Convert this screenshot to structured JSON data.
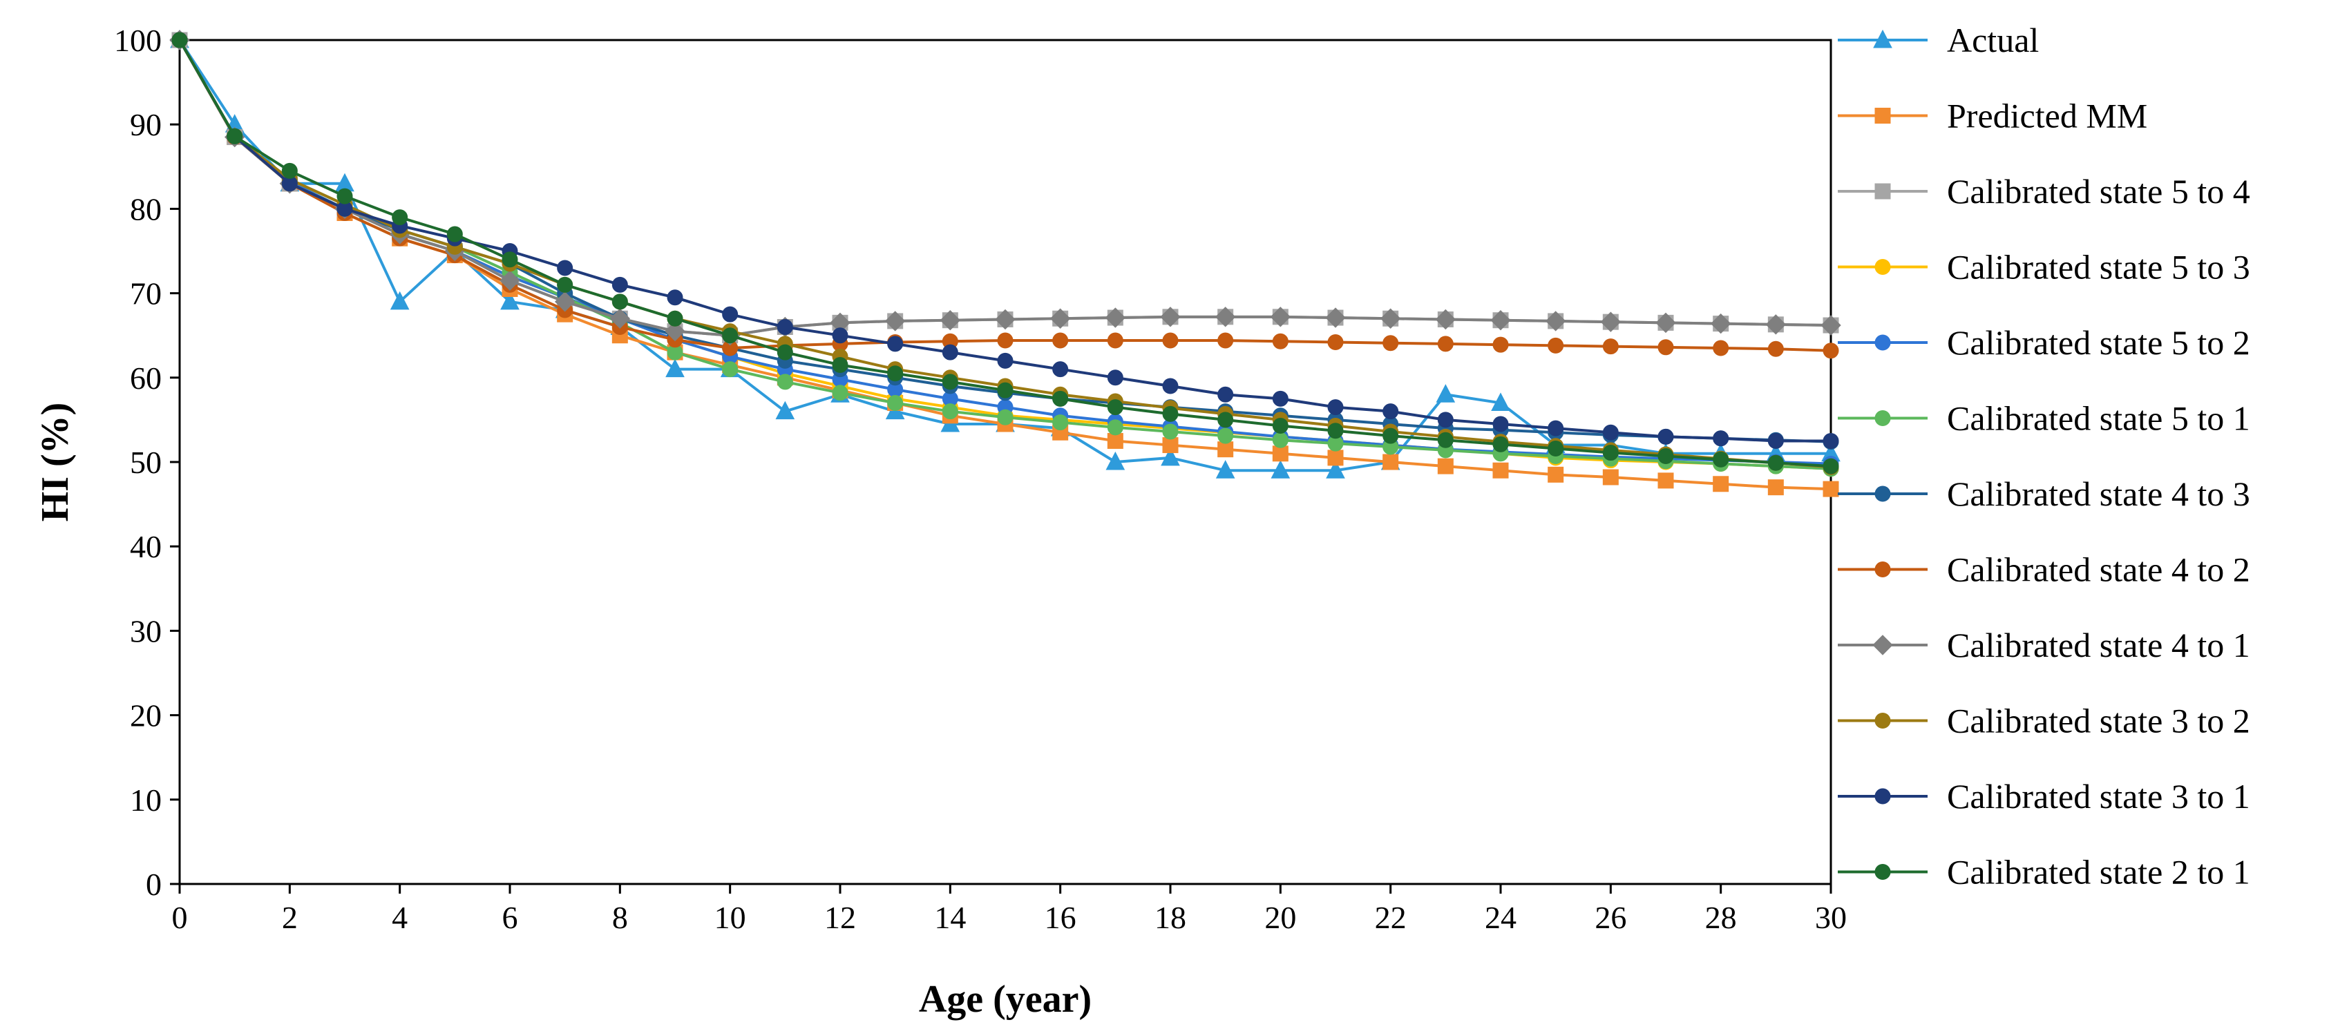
{
  "chart_data": {
    "type": "line",
    "title": "",
    "xlabel": "Age (year)",
    "ylabel": "HI (%)",
    "xlim": [
      0,
      30
    ],
    "ylim": [
      0,
      100
    ],
    "xticks": [
      0,
      2,
      4,
      6,
      8,
      10,
      12,
      14,
      16,
      18,
      20,
      22,
      24,
      26,
      28,
      30
    ],
    "yticks": [
      0,
      10,
      20,
      30,
      40,
      50,
      60,
      70,
      80,
      90,
      100
    ],
    "grid": false,
    "legend_position": "right",
    "x": [
      0,
      1,
      2,
      3,
      4,
      5,
      6,
      7,
      8,
      9,
      10,
      11,
      12,
      13,
      14,
      15,
      16,
      17,
      18,
      19,
      20,
      21,
      22,
      23,
      24,
      25,
      26,
      27,
      28,
      29,
      30
    ],
    "series": [
      {
        "name": "Actual",
        "color": "#2E9BDB",
        "marker": "triangle",
        "values": [
          100,
          90,
          83,
          83,
          69,
          75,
          69,
          68,
          66,
          61,
          61,
          56,
          58,
          56,
          54.5,
          54.5,
          54,
          50,
          50.5,
          49,
          49,
          49,
          50,
          58,
          57,
          52,
          52,
          51,
          51,
          51,
          51
        ]
      },
      {
        "name": "Predicted MM",
        "color": "#F28A2E",
        "marker": "square",
        "values": [
          100,
          88.5,
          83,
          79.5,
          76.5,
          74.5,
          70.5,
          67.5,
          65,
          63,
          61.5,
          60,
          58.5,
          57,
          55.5,
          54.5,
          53.5,
          52.5,
          52,
          51.5,
          51,
          50.5,
          50,
          49.5,
          49,
          48.5,
          48.2,
          47.8,
          47.4,
          47,
          46.8
        ]
      },
      {
        "name": "Calibrated state 5 to 4",
        "color": "#A5A5A5",
        "marker": "square",
        "values": [
          100,
          88.5,
          83,
          80,
          77,
          75,
          71.5,
          69,
          67,
          65.5,
          65,
          66,
          66.5,
          66.7,
          66.8,
          66.9,
          67,
          67.1,
          67.2,
          67.2,
          67.2,
          67.1,
          67,
          66.9,
          66.8,
          66.7,
          66.6,
          66.5,
          66.4,
          66.3,
          66.2
        ]
      },
      {
        "name": "Calibrated state 5 to 3",
        "color": "#FFC000",
        "marker": "circle",
        "values": [
          100,
          88.6,
          83.2,
          80,
          77,
          75,
          72,
          69.5,
          67,
          64.5,
          62.5,
          60.5,
          59,
          57.5,
          56.5,
          55.5,
          55,
          54.5,
          54,
          53.5,
          53,
          52.5,
          52,
          51.5,
          51,
          50.5,
          50.2,
          50,
          49.8,
          49.5,
          49.2
        ]
      },
      {
        "name": "Calibrated state 5 to 2",
        "color": "#2E75D6",
        "marker": "circle",
        "values": [
          100,
          88.6,
          83.2,
          80,
          77,
          75,
          72,
          69.5,
          67,
          64.5,
          62.5,
          61,
          59.8,
          58.6,
          57.5,
          56.5,
          55.5,
          54.8,
          54.2,
          53.6,
          53,
          52.5,
          52,
          51.5,
          51.2,
          50.9,
          50.6,
          50.4,
          50.2,
          50,
          49.8
        ]
      },
      {
        "name": "Calibrated state 5 to 1",
        "color": "#5CB85C",
        "marker": "circle",
        "values": [
          100,
          88.6,
          83.5,
          80.5,
          77.5,
          75.5,
          72.5,
          69.5,
          66.5,
          63,
          61,
          59.5,
          58.2,
          57,
          56,
          55.3,
          54.7,
          54.1,
          53.6,
          53.1,
          52.6,
          52.2,
          51.8,
          51.4,
          51,
          50.7,
          50.4,
          50.1,
          49.8,
          49.5,
          49.2
        ]
      },
      {
        "name": "Calibrated state 4 to 3",
        "color": "#1F5F95",
        "marker": "circle",
        "values": [
          100,
          88.6,
          83,
          80,
          77.5,
          75.5,
          73.5,
          70,
          67,
          65,
          63.5,
          62,
          61,
          60,
          59,
          58.2,
          57.5,
          57,
          56.5,
          56,
          55.5,
          55,
          54.5,
          54,
          53.8,
          53.5,
          53.2,
          53,
          52.8,
          52.6,
          52.4
        ]
      },
      {
        "name": "Calibrated state 4 to 2",
        "color": "#C55A11",
        "marker": "circle",
        "values": [
          100,
          88.5,
          83,
          79.5,
          76.5,
          74.5,
          71,
          68,
          66,
          64.5,
          63.5,
          63.8,
          64,
          64.2,
          64.3,
          64.4,
          64.4,
          64.4,
          64.4,
          64.4,
          64.3,
          64.2,
          64.1,
          64,
          63.9,
          63.8,
          63.7,
          63.6,
          63.5,
          63.4,
          63.2
        ]
      },
      {
        "name": "Calibrated state 4 to 1",
        "color": "#7F7F7F",
        "marker": "diamond",
        "values": [
          100,
          88.5,
          83,
          80,
          77,
          75,
          71.5,
          69,
          67,
          65.5,
          65,
          66,
          66.5,
          66.7,
          66.8,
          66.9,
          67,
          67.1,
          67.2,
          67.2,
          67.2,
          67.1,
          67,
          66.9,
          66.8,
          66.7,
          66.6,
          66.5,
          66.4,
          66.3,
          66.2
        ]
      },
      {
        "name": "Calibrated state 3 to 2",
        "color": "#9C7A12",
        "marker": "circle",
        "values": [
          100,
          88.6,
          83.5,
          80.5,
          77.5,
          75.5,
          73.5,
          71,
          69,
          67,
          65.5,
          64,
          62.5,
          61,
          60,
          59,
          58,
          57.2,
          56.4,
          55.7,
          55,
          54.3,
          53.6,
          53,
          52.4,
          51.9,
          51.4,
          50.9,
          50.4,
          49.9,
          49.4
        ]
      },
      {
        "name": "Calibrated state 3 to 1",
        "color": "#1F3A7A",
        "marker": "circle",
        "values": [
          100,
          88.6,
          83,
          80,
          78,
          76.5,
          75,
          73,
          71,
          69.5,
          67.5,
          66,
          65,
          64,
          63,
          62,
          61,
          60,
          59,
          58,
          57.5,
          56.5,
          56,
          55,
          54.5,
          54,
          53.5,
          53,
          52.8,
          52.5,
          52.5
        ]
      },
      {
        "name": "Calibrated state 2 to 1",
        "color": "#1E6B2E",
        "marker": "circle",
        "values": [
          100,
          88.6,
          84.5,
          81.5,
          79,
          77,
          74,
          71,
          69,
          67,
          65,
          63,
          61.5,
          60.5,
          59.5,
          58.5,
          57.5,
          56.5,
          55.7,
          55,
          54.3,
          53.7,
          53.1,
          52.6,
          52.1,
          51.6,
          51.1,
          50.7,
          50.3,
          49.9,
          49.5
        ]
      }
    ]
  }
}
